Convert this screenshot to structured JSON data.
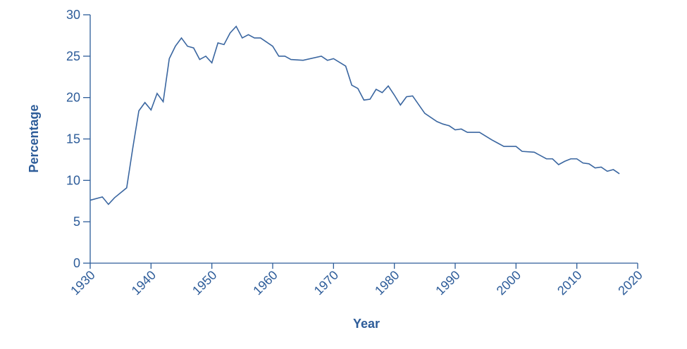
{
  "chart_data": {
    "type": "line",
    "x_label": "Year",
    "y_label": "Percentage",
    "x": [
      1930,
      1932,
      1933,
      1934,
      1936,
      1937,
      1938,
      1939,
      1940,
      1941,
      1942,
      1943,
      1944,
      1945,
      1946,
      1947,
      1948,
      1949,
      1950,
      1951,
      1952,
      1953,
      1954,
      1955,
      1956,
      1957,
      1958,
      1959,
      1960,
      1961,
      1962,
      1963,
      1965,
      1968,
      1969,
      1970,
      1972,
      1973,
      1974,
      1975,
      1976,
      1977,
      1978,
      1979,
      1980,
      1981,
      1982,
      1983,
      1985,
      1987,
      1988,
      1989,
      1990,
      1991,
      1992,
      1993,
      1994,
      1996,
      1997,
      1998,
      2000,
      2001,
      2003,
      2005,
      2006,
      2007,
      2008,
      2009,
      2010,
      2011,
      2012,
      2013,
      2014,
      2015,
      2016,
      2017
    ],
    "series": [
      {
        "color": "#3a66a0",
        "values": [
          7.6,
          8.0,
          7.1,
          7.9,
          9.1,
          13.9,
          18.4,
          19.4,
          18.5,
          20.5,
          19.5,
          24.7,
          26.2,
          27.2,
          26.2,
          26.0,
          24.6,
          25.0,
          24.2,
          26.6,
          26.4,
          27.8,
          28.6,
          27.2,
          27.6,
          27.2,
          27.2,
          26.7,
          26.2,
          25.0,
          25.0,
          24.6,
          24.5,
          25.0,
          24.5,
          24.7,
          23.8,
          21.5,
          21.1,
          19.7,
          19.8,
          21.0,
          20.6,
          21.4,
          20.3,
          19.1,
          20.1,
          20.2,
          18.1,
          17.1,
          16.8,
          16.6,
          16.1,
          16.2,
          15.8,
          15.8,
          15.8,
          14.9,
          14.5,
          14.1,
          14.1,
          13.5,
          13.4,
          12.6,
          12.6,
          11.9,
          12.3,
          12.6,
          12.6,
          12.1,
          12.0,
          11.5,
          11.6,
          11.1,
          11.3,
          10.8
        ]
      }
    ],
    "xlim": [
      1930,
      2020
    ],
    "xticks": [
      1930,
      1940,
      1950,
      1960,
      1970,
      1980,
      1990,
      2000,
      2010,
      2020
    ],
    "ylim": [
      0,
      30
    ],
    "yticks": [
      0,
      5,
      10,
      15,
      20,
      25,
      30
    ]
  }
}
